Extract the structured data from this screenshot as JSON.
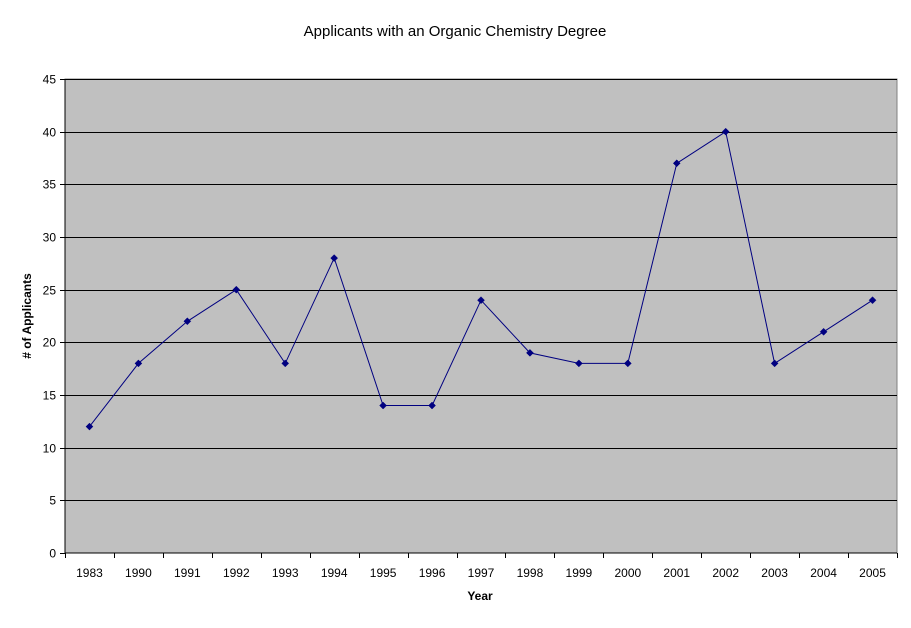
{
  "chart_data": {
    "type": "line",
    "title": "Applicants with an Organic Chemistry Degree",
    "xlabel": "Year",
    "ylabel": "# of Applicants",
    "categories": [
      "1983",
      "1990",
      "1991",
      "1992",
      "1993",
      "1994",
      "1995",
      "1996",
      "1997",
      "1998",
      "1999",
      "2000",
      "2001",
      "2002",
      "2003",
      "2004",
      "2005"
    ],
    "series": [
      {
        "values": [
          12,
          18,
          22,
          25,
          18,
          28,
          14,
          14,
          24,
          19,
          18,
          18,
          37,
          40,
          18,
          21,
          24
        ]
      }
    ],
    "ylim": [
      0,
      45
    ],
    "yticks": [
      0,
      5,
      10,
      15,
      20,
      25,
      30,
      35,
      40,
      45
    ],
    "grid": true,
    "legend": "none",
    "colors": {
      "plot_background": "#C0C0C0",
      "line": "#000080",
      "marker": "#000080",
      "gridline": "#000000"
    }
  }
}
